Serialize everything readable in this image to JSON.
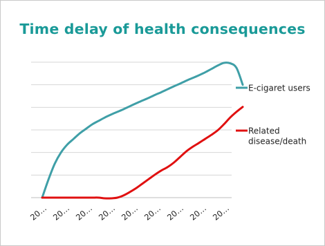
{
  "title": "Time delay of health consequences",
  "chart_data": {
    "type": "line",
    "title": "Time delay of health consequences",
    "xlabel": "",
    "ylabel": "",
    "categories": [
      "20…",
      "20…",
      "20…",
      "20…",
      "20…",
      "20…",
      "20…",
      "20…",
      "20…"
    ],
    "x": [
      0,
      1,
      2,
      3,
      4,
      5,
      6,
      7,
      8,
      9,
      10,
      11,
      12,
      13,
      14,
      15,
      16,
      17,
      18,
      19,
      20,
      21,
      22,
      23,
      24,
      25,
      26,
      27,
      28,
      29,
      30,
      31,
      32
    ],
    "ylim": [
      0,
      6
    ],
    "grid": true,
    "legend_position": "right",
    "series": [
      {
        "name": "E-cigaret users",
        "color": "#3f9fa7",
        "values": [
          0,
          0.8,
          1.5,
          2.0,
          2.35,
          2.6,
          2.85,
          3.05,
          3.25,
          3.4,
          3.55,
          3.68,
          3.8,
          3.92,
          4.05,
          4.18,
          4.3,
          4.42,
          4.55,
          4.67,
          4.8,
          4.93,
          5.05,
          5.18,
          5.3,
          5.42,
          5.55,
          5.7,
          5.85,
          5.97,
          5.95,
          5.75,
          5.0
        ]
      },
      {
        "name": "Related disease/death",
        "color": "#e01010",
        "values": [
          0,
          0,
          0,
          0,
          0,
          0,
          0,
          0,
          0,
          0,
          -0.03,
          -0.03,
          0,
          0.1,
          0.25,
          0.42,
          0.62,
          0.82,
          1.02,
          1.2,
          1.35,
          1.55,
          1.8,
          2.05,
          2.25,
          2.42,
          2.6,
          2.78,
          2.98,
          3.25,
          3.55,
          3.8,
          4.02
        ]
      }
    ]
  }
}
